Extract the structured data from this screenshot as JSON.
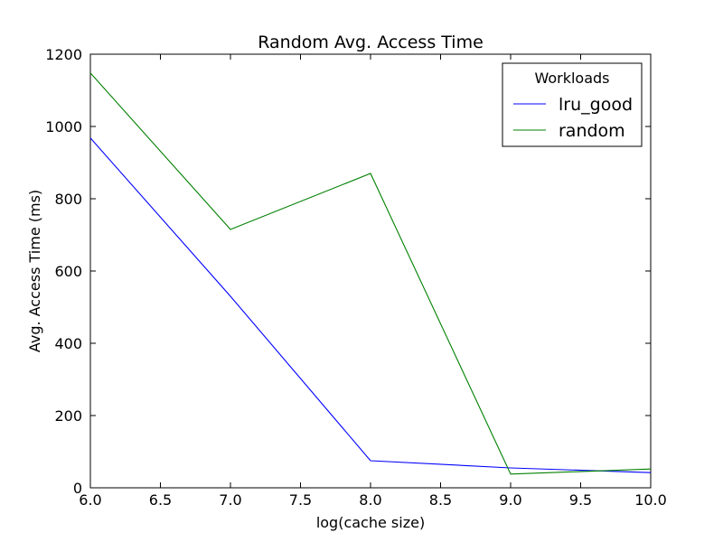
{
  "chart_data": {
    "type": "line",
    "title": "Random Avg. Access Time",
    "xlabel": "log(cache size)",
    "ylabel": "Avg. Access Time (ms)",
    "xlim": [
      6.0,
      10.0
    ],
    "ylim": [
      0,
      1200
    ],
    "xticks": [
      "6.0",
      "6.5",
      "7.0",
      "7.5",
      "8.0",
      "8.5",
      "9.0",
      "9.5",
      "10.0"
    ],
    "yticks": [
      "0",
      "200",
      "400",
      "600",
      "800",
      "1000",
      "1200"
    ],
    "grid": false,
    "legend": {
      "title": "Workloads",
      "placement": "top-right"
    },
    "x": [
      6.0,
      7.0,
      8.0,
      9.0,
      10.0
    ],
    "series": [
      {
        "name": "lru_good",
        "color": "#0000ff",
        "values": [
          968,
          530,
          75,
          55,
          42
        ]
      },
      {
        "name": "random",
        "color": "#008000",
        "values": [
          1148,
          715,
          870,
          38,
          52
        ]
      }
    ]
  }
}
